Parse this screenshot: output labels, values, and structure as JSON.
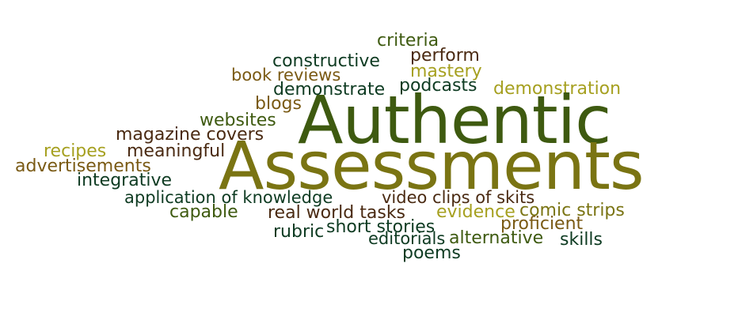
{
  "colors": {
    "dark_green": "#0e3b22",
    "olive_green": "#3e5a10",
    "olive": "#7a7413",
    "mustard": "#a6a020",
    "brown": "#4a2a12",
    "gold_brown": "#7a5a14"
  },
  "words": [
    {
      "id": "authentic",
      "text": "Authentic"
    },
    {
      "id": "assessments",
      "text": "Assessments"
    },
    {
      "id": "criteria",
      "text": "criteria"
    },
    {
      "id": "perform",
      "text": "perform"
    },
    {
      "id": "constructive",
      "text": "constructive"
    },
    {
      "id": "mastery",
      "text": "mastery"
    },
    {
      "id": "book-reviews",
      "text": "book reviews"
    },
    {
      "id": "podcasts",
      "text": "podcasts"
    },
    {
      "id": "demonstrate",
      "text": "demonstrate"
    },
    {
      "id": "demonstration",
      "text": "demonstration"
    },
    {
      "id": "blogs",
      "text": "blogs"
    },
    {
      "id": "websites",
      "text": "websites"
    },
    {
      "id": "magazine-covers",
      "text": "magazine covers"
    },
    {
      "id": "recipes",
      "text": "recipes"
    },
    {
      "id": "meaningful",
      "text": "meaningful"
    },
    {
      "id": "advertisements",
      "text": "advertisements"
    },
    {
      "id": "integrative",
      "text": "integrative"
    },
    {
      "id": "application-of-knowledge",
      "text": "application of knowledge"
    },
    {
      "id": "video-clips-of-skits",
      "text": "video clips of skits"
    },
    {
      "id": "capable",
      "text": "capable"
    },
    {
      "id": "real-world-tasks",
      "text": "real world tasks"
    },
    {
      "id": "evidence",
      "text": "evidence"
    },
    {
      "id": "comic-strips",
      "text": "comic strips"
    },
    {
      "id": "proficient",
      "text": "proficient"
    },
    {
      "id": "rubric",
      "text": "rubric"
    },
    {
      "id": "short-stories",
      "text": "short stories"
    },
    {
      "id": "editorials",
      "text": "editorials"
    },
    {
      "id": "alternative",
      "text": "alternative"
    },
    {
      "id": "skills",
      "text": "skills"
    },
    {
      "id": "poems",
      "text": "poems"
    }
  ]
}
